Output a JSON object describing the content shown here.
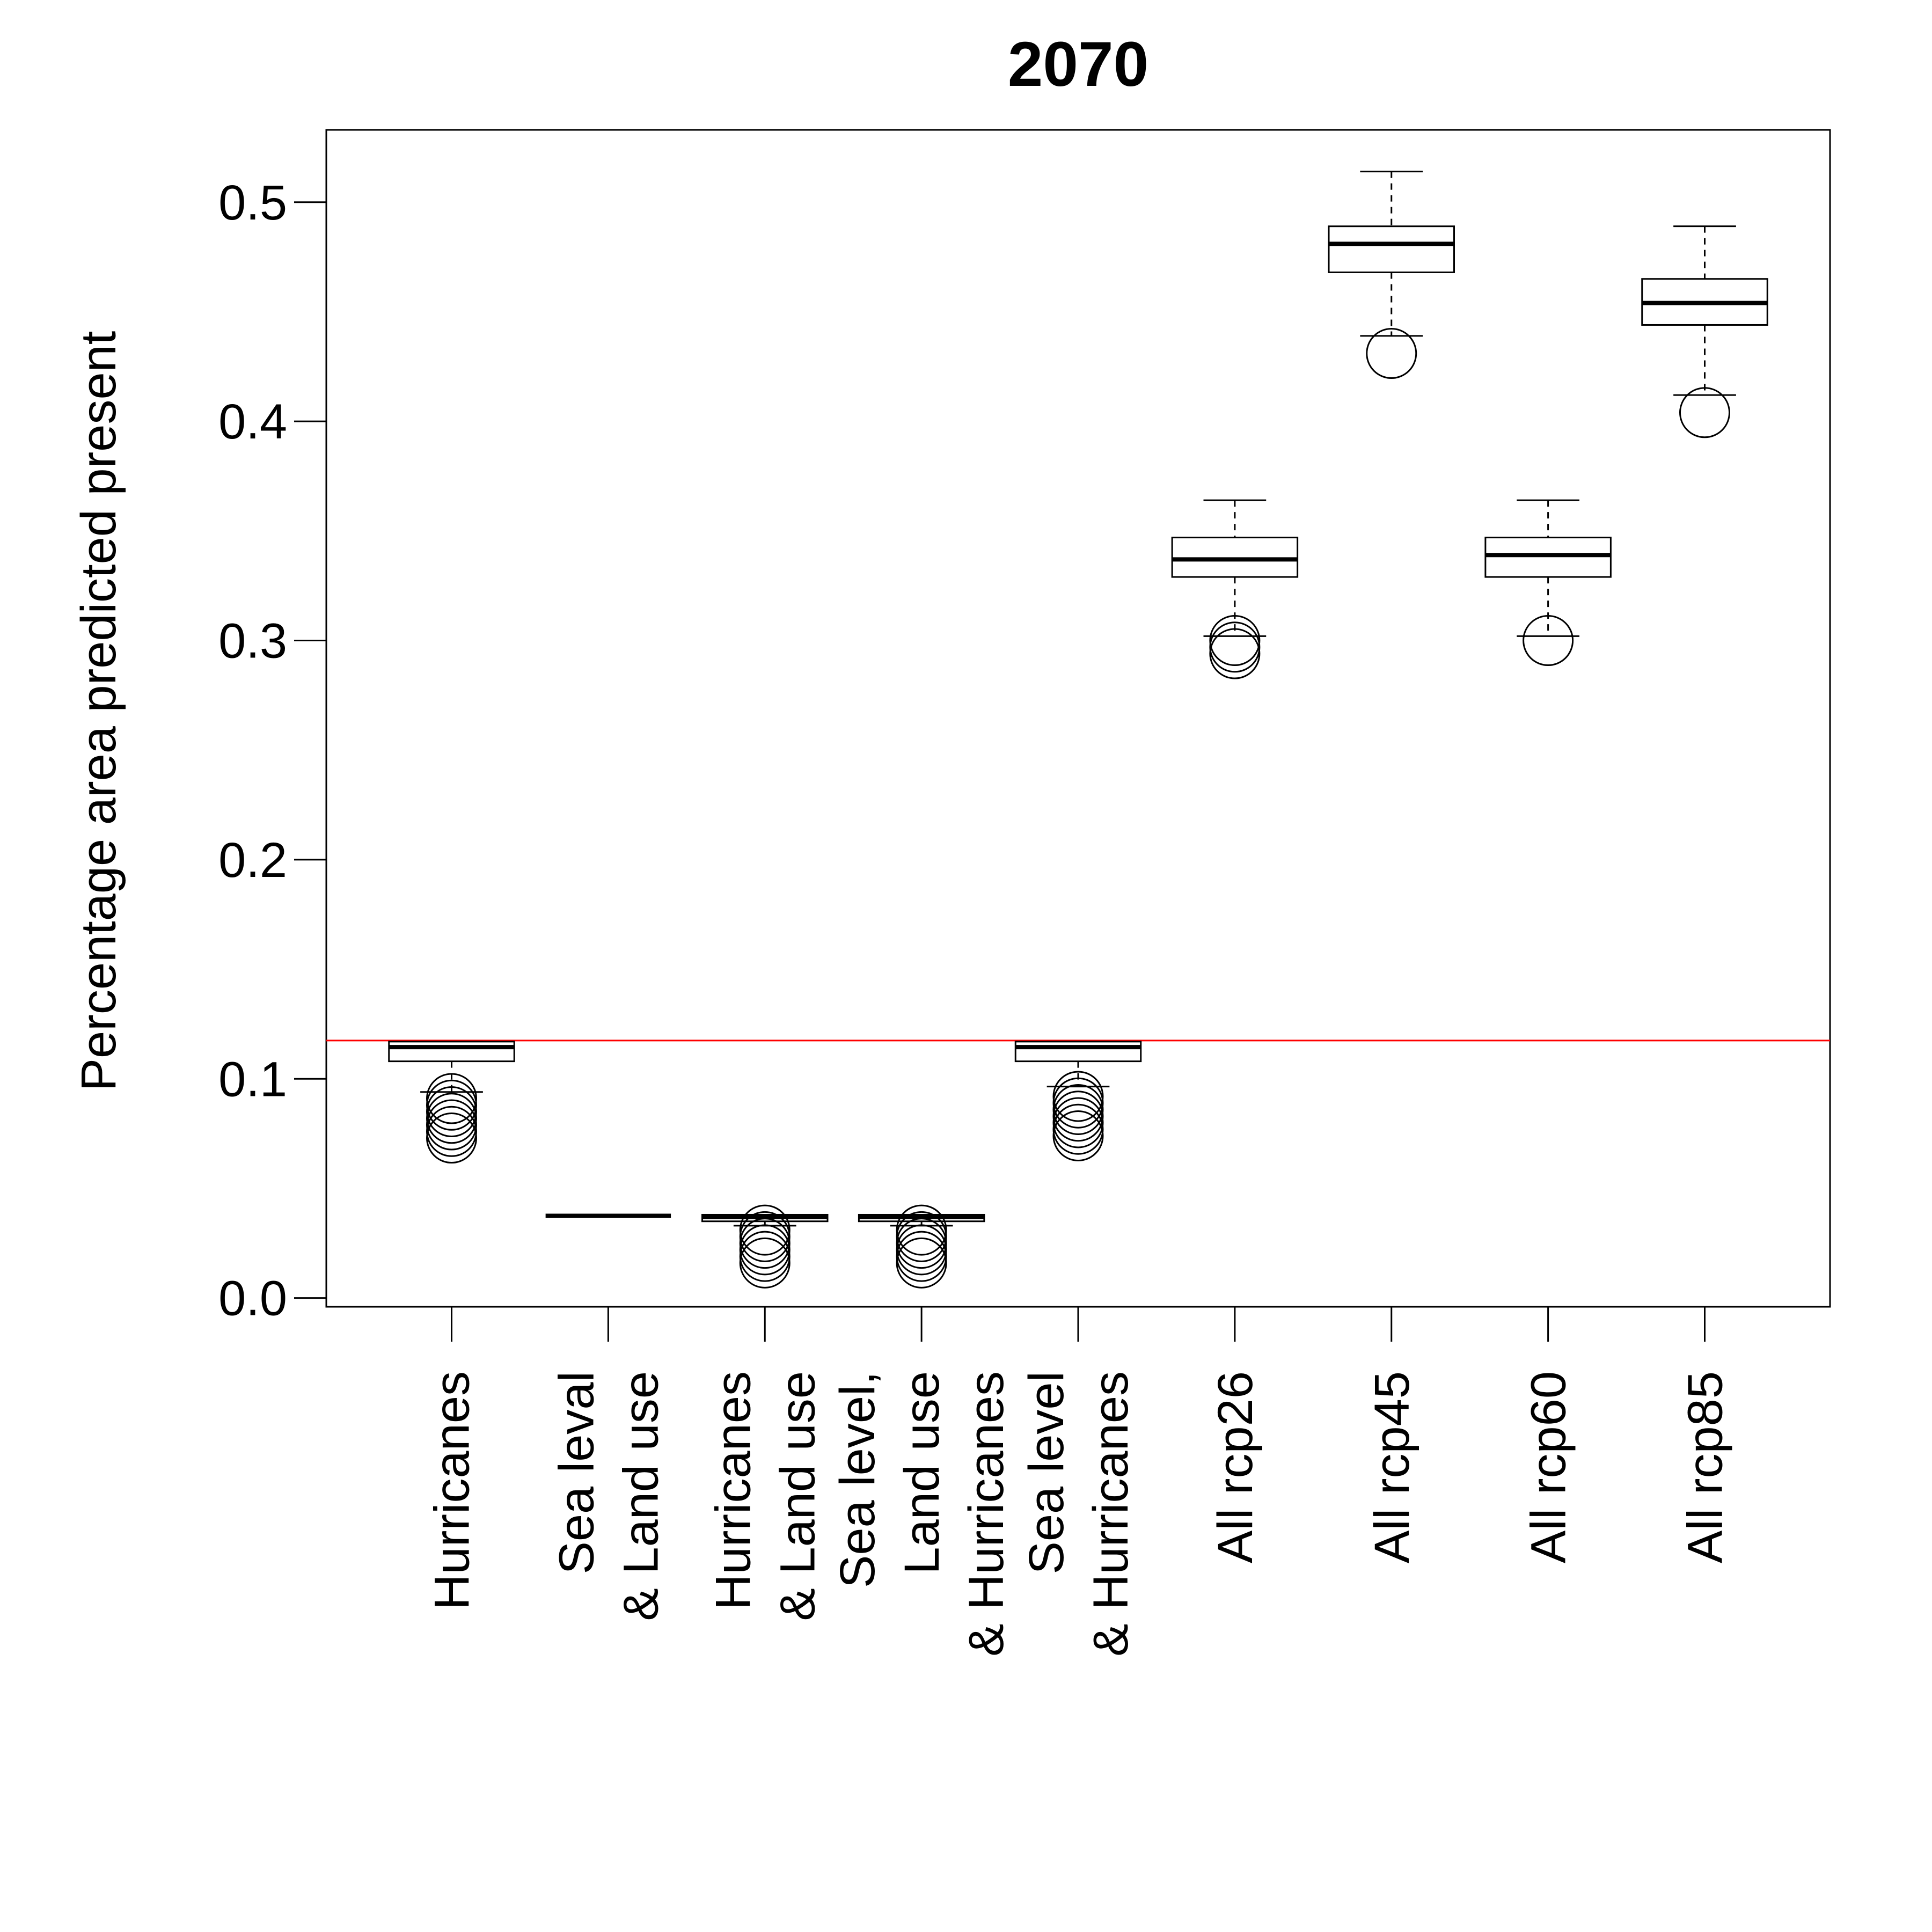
{
  "chart_data": {
    "type": "boxplot",
    "title": "2070",
    "xlabel": "",
    "ylabel": "Percentage area predicted present",
    "ylim": [
      -0.004,
      0.533
    ],
    "yticks": [
      "0.0",
      "0.1",
      "0.2",
      "0.3",
      "0.4",
      "0.5"
    ],
    "grid": false,
    "reference_line": {
      "y": 0.1175,
      "color": "#ff0000"
    },
    "categories": [
      {
        "label": [
          "Hurricanes"
        ],
        "box": {
          "min": 0.094,
          "q1": 0.108,
          "median": 0.1145,
          "q3": 0.117,
          "max": 0.117
        },
        "outliers": [
          0.091,
          0.088,
          0.085,
          0.082,
          0.079,
          0.076,
          0.073
        ]
      },
      {
        "label": [
          "Sea leval",
          "& Land use"
        ],
        "box": {
          "min": 0.0375,
          "q1": 0.0375,
          "median": 0.0375,
          "q3": 0.0375,
          "max": 0.0375
        },
        "outliers": []
      },
      {
        "label": [
          "Hurricanes",
          "& Land use"
        ],
        "box": {
          "min": 0.033,
          "q1": 0.035,
          "median": 0.037,
          "q3": 0.038,
          "max": 0.038
        },
        "outliers": [
          0.031,
          0.028,
          0.025,
          0.022,
          0.019,
          0.016
        ]
      },
      {
        "label": [
          "Sea level,",
          "Land use",
          "& Hurricanes"
        ],
        "box": {
          "min": 0.033,
          "q1": 0.035,
          "median": 0.037,
          "q3": 0.038,
          "max": 0.038
        },
        "outliers": [
          0.031,
          0.028,
          0.025,
          0.022,
          0.019,
          0.016
        ]
      },
      {
        "label": [
          "Sea level",
          "& Hurricanes"
        ],
        "box": {
          "min": 0.0965,
          "q1": 0.108,
          "median": 0.1145,
          "q3": 0.117,
          "max": 0.117
        },
        "outliers": [
          0.092,
          0.089,
          0.086,
          0.083,
          0.08,
          0.077,
          0.074
        ]
      },
      {
        "label": [
          "All rcp26"
        ],
        "box": {
          "min": 0.302,
          "q1": 0.329,
          "median": 0.337,
          "q3": 0.347,
          "max": 0.364
        },
        "outliers": [
          0.3,
          0.297,
          0.294
        ]
      },
      {
        "label": [
          "All rcp45"
        ],
        "box": {
          "min": 0.439,
          "q1": 0.468,
          "median": 0.481,
          "q3": 0.489,
          "max": 0.514
        },
        "outliers": [
          0.431
        ]
      },
      {
        "label": [
          "All rcp60"
        ],
        "box": {
          "min": 0.302,
          "q1": 0.329,
          "median": 0.339,
          "q3": 0.347,
          "max": 0.364
        },
        "outliers": [
          0.3
        ]
      },
      {
        "label": [
          "All rcp85"
        ],
        "box": {
          "min": 0.412,
          "q1": 0.444,
          "median": 0.454,
          "q3": 0.465,
          "max": 0.489
        },
        "outliers": [
          0.404
        ]
      }
    ]
  }
}
